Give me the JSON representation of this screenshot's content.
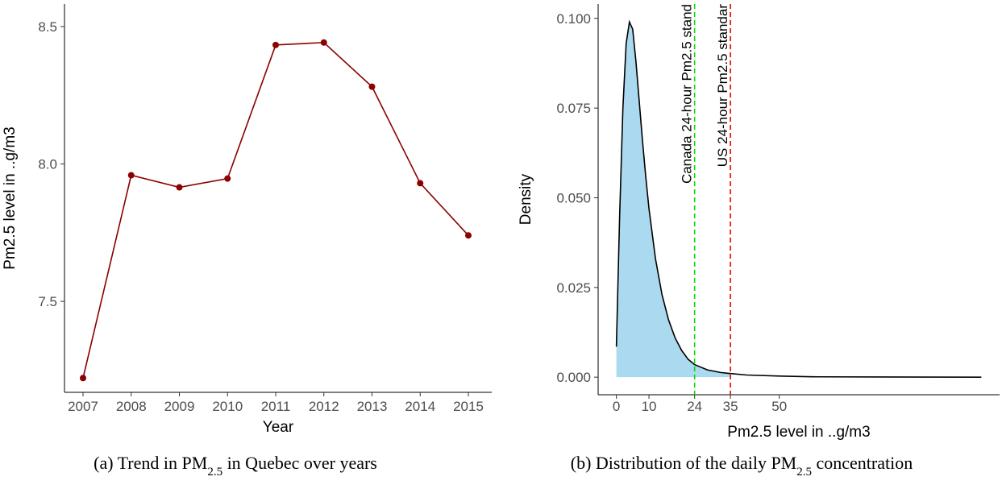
{
  "chart_data": [
    {
      "type": "line",
      "x_label": "Year",
      "y_label": "Pm2.5 level in ..g/m3",
      "categories": [
        "2007",
        "2008",
        "2009",
        "2010",
        "2011",
        "2012",
        "2013",
        "2014",
        "2015"
      ],
      "values": [
        7.221,
        7.959,
        7.915,
        7.947,
        8.433,
        8.442,
        8.281,
        7.93,
        7.74
      ],
      "color": "#8b0000",
      "ylim": [
        7.169,
        8.582
      ],
      "yticks": [
        7.5,
        {
          "value": 8,
          "label": "8.0"
        },
        8.5
      ],
      "grid": false,
      "caption": [
        "(a) Trend in PM",
        "2.5",
        " in Quebec over years"
      ]
    },
    {
      "type": "area",
      "x_label": "Pm2.5 level in ..g/m3",
      "y_label": "Density",
      "x": [
        0,
        1,
        2,
        3,
        4,
        5,
        6,
        7,
        8,
        9,
        10,
        12,
        14,
        16,
        18,
        20,
        22,
        24,
        28,
        32,
        35,
        40,
        50,
        60,
        80,
        112
      ],
      "values": [
        0.0085,
        0.045,
        0.075,
        0.093,
        0.099,
        0.097,
        0.088,
        0.077,
        0.066,
        0.056,
        0.047,
        0.033,
        0.023,
        0.016,
        0.011,
        0.0075,
        0.005,
        0.0035,
        0.002,
        0.0013,
        0.001,
        0.0006,
        0.0003,
        0.0001,
        5e-05,
        0
      ],
      "color": "#000000",
      "fill_color": "#abdaf0",
      "xlim": [
        -5.6,
        117.6
      ],
      "xticks": [
        0,
        10,
        24,
        35,
        50
      ],
      "ylim": [
        -0.0049,
        0.104
      ],
      "yticks": [
        {
          "value": 0,
          "label": "0.000"
        },
        {
          "value": 0.025,
          "label": "0.025"
        },
        {
          "value": 0.05,
          "label": "0.050"
        },
        {
          "value": 0.075,
          "label": "0.075"
        },
        {
          "value": 0.1,
          "label": "0.100"
        }
      ],
      "vlines": [
        {
          "value": 24,
          "label": "Canada 24-hour Pm2.5 stand",
          "color": "#00dd00"
        },
        {
          "value": 35,
          "label": "US 24-hour Pm2.5 standar",
          "color": "#ee0000"
        }
      ],
      "grid": false,
      "caption": [
        "(b) Distribution of the daily PM",
        "2.5",
        " concentration"
      ]
    }
  ]
}
